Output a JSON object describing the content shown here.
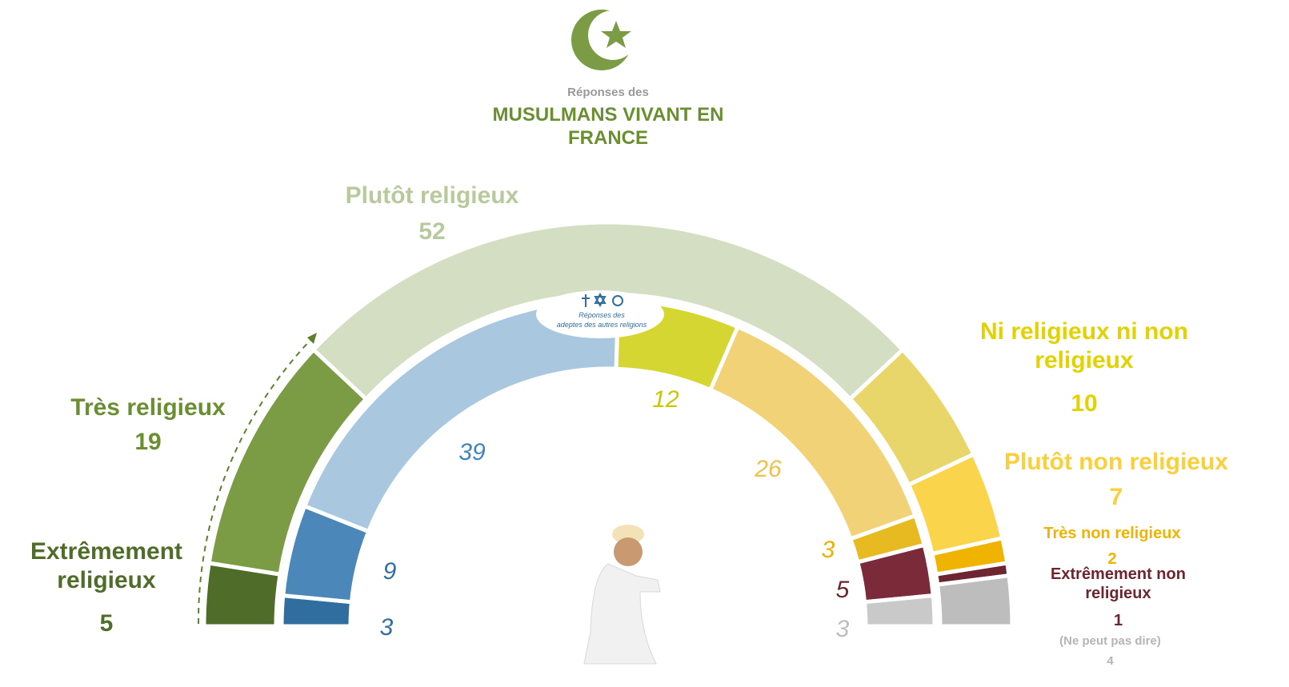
{
  "chart_data": {
    "type": "semi-donut",
    "subtitle": "Réponses des",
    "title": "MUSULMANS VIVANT EN FRANCE",
    "inner_subtitle": "Réponses des",
    "inner_title": "adeptes des autres religions",
    "categories": [
      "Extrêmement religieux",
      "Très religieux",
      "Plutôt religieux",
      "Ni religieux ni non religieux",
      "Plutôt non religieux",
      "Très non religieux",
      "Extrêmement non religieux",
      "(Ne peut pas dire)"
    ],
    "series": [
      {
        "values": [
          5,
          19,
          52,
          10,
          7,
          2,
          1,
          4
        ],
        "colors": [
          "#506c29",
          "#7b9b44",
          "#d4dec2",
          "#e9d66a",
          "#fad44a",
          "#f0b400",
          "#6d2530",
          "#bdbdbd"
        ]
      },
      {
        "values": [
          3,
          9,
          39,
          12,
          26,
          3,
          5,
          3
        ],
        "colors": [
          "#2f6e9e",
          "#4b87b8",
          "#a9c8e0",
          "#d6d632",
          "#f2d276",
          "#e8ba22",
          "#7b2a3a",
          "#c9c9c9"
        ]
      }
    ]
  }
}
